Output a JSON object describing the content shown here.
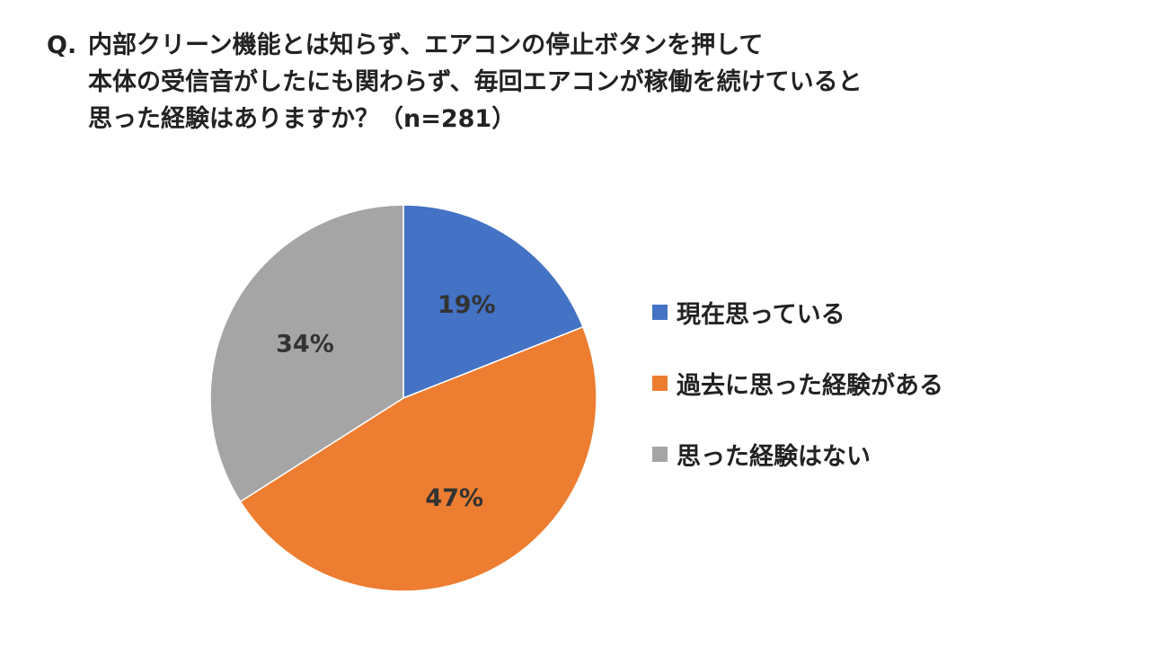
{
  "title": {
    "prefix": "Q.",
    "lines": [
      "内部クリーン機能とは知らず、エアコンの停止ボタンを押して",
      "本体の受信音がしたにも関わらず、毎回エアコンが稼働を続けていると",
      "思った経験はありますか？（n=281）"
    ]
  },
  "chart_data": {
    "type": "pie",
    "title": "Q. 内部クリーン機能とは知らず、エアコンの停止ボタンを押して本体の受信音がしたにも関わらず、毎回エアコンが稼働を続けていると思った経験はありますか？（n=281）",
    "start": "12 o'clock, clockwise",
    "legend_position": "right",
    "slices": [
      {
        "label": "現在思っている",
        "value": 19,
        "display": "19%",
        "color": "#4472C4"
      },
      {
        "label": "過去に思った経験がある",
        "value": 47,
        "display": "47%",
        "color": "#ED7D31"
      },
      {
        "label": "思った経験はない",
        "value": 34,
        "display": "34%",
        "color": "#A5A5A5"
      }
    ]
  }
}
